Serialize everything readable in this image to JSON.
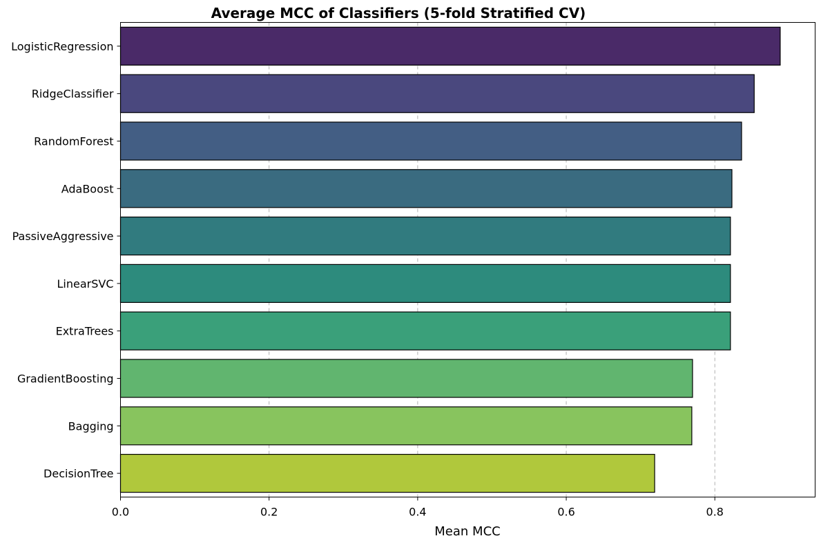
{
  "chart_data": {
    "type": "bar",
    "orientation": "horizontal",
    "title": "Average MCC of Classifiers (5-fold Stratified CV)",
    "xlabel": "Mean MCC",
    "ylabel": "",
    "xlim": [
      0,
      0.935
    ],
    "xticks": [
      0.0,
      0.2,
      0.4,
      0.6,
      0.8
    ],
    "xtick_labels": [
      "0.0",
      "0.2",
      "0.4",
      "0.6",
      "0.8"
    ],
    "grid": "x-dashed",
    "categories": [
      "LogisticRegression",
      "RidgeClassifier",
      "RandomForest",
      "AdaBoost",
      "PassiveAggressive",
      "LinearSVC",
      "ExtraTrees",
      "GradientBoosting",
      "Bagging",
      "DecisionTree"
    ],
    "values": [
      0.888,
      0.853,
      0.836,
      0.823,
      0.821,
      0.821,
      0.821,
      0.77,
      0.769,
      0.719
    ],
    "colors": [
      "#4a2a68",
      "#4a487e",
      "#435e84",
      "#3a6b80",
      "#317b7f",
      "#2d8b7d",
      "#3aa07a",
      "#61b56f",
      "#88c45e",
      "#b0c83c"
    ]
  }
}
